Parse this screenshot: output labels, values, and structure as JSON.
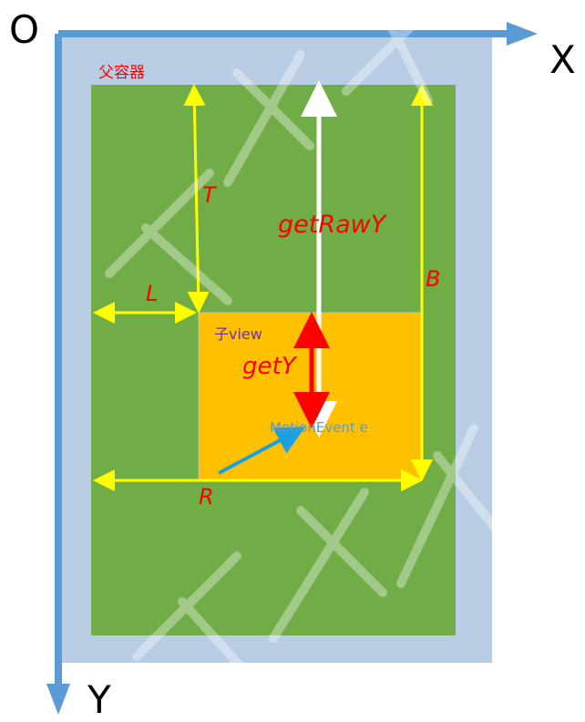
{
  "axes": {
    "origin_label": "O",
    "x_label": "X",
    "y_label": "Y"
  },
  "labels": {
    "parent": "父容器",
    "child": "子view",
    "top": "T",
    "left": "L",
    "right": "R",
    "bottom": "B",
    "get_raw_y": "getRawY",
    "get_y": "getY",
    "motion_event": "MotionEvent e"
  },
  "colors": {
    "screen": "#b8cce4",
    "axis": "#5b9bd5",
    "parent": "#70ad47",
    "child": "#ffc000",
    "measure": "#ffff00",
    "label_red": "#ff0000",
    "event_arrow": "#1ba1e2",
    "raw_arrow": "#ffffff",
    "child_label": "#7030a0"
  },
  "watermark": "高学课堂"
}
